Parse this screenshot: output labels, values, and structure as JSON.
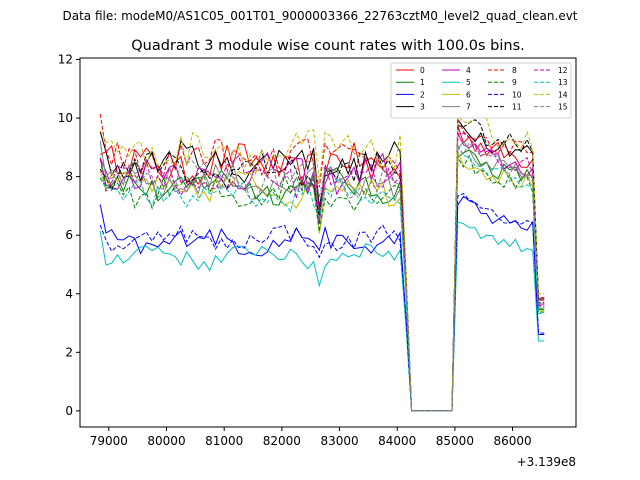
{
  "figure": {
    "suptitle": "Data file: modeM0/AS1C05_001T01_9000003366_22763cztM0_level2_quad_clean.evt",
    "offset_label": "+3.139e8"
  },
  "chart_data": {
    "type": "line",
    "title": "Quadrant 3 module wise count rates with 100.0s bins.",
    "xlabel": "",
    "ylabel": "",
    "x_offset": 313900000,
    "xlim": [
      78500,
      87100
    ],
    "ylim": [
      -0.55,
      12.05
    ],
    "xticks": [
      79000,
      80000,
      81000,
      82000,
      83000,
      84000,
      85000,
      86000
    ],
    "xtick_labels": [
      "79000",
      "80000",
      "81000",
      "82000",
      "83000",
      "84000",
      "85000",
      "86000"
    ],
    "yticks": [
      0,
      2,
      4,
      6,
      8,
      10,
      12
    ],
    "ytick_labels": [
      "0",
      "2",
      "4",
      "6",
      "8",
      "10",
      "12"
    ],
    "x": {
      "start": 78850,
      "step": 100,
      "count": 78
    },
    "grid": false,
    "legend": {
      "placement": "top-right",
      "columns": 4
    },
    "series": [
      {
        "name": "0",
        "color": "#ff0000",
        "dash": "solid",
        "base": 8.4,
        "amp": 0.55,
        "post": 9.2
      },
      {
        "name": "1",
        "color": "#008000",
        "dash": "solid",
        "base": 7.7,
        "amp": 0.45,
        "post": 8.6
      },
      {
        "name": "2",
        "color": "#0000ff",
        "dash": "solid",
        "base": 5.8,
        "amp": 0.35,
        "post": 6.9
      },
      {
        "name": "3",
        "color": "#000000",
        "dash": "solid",
        "base": 8.5,
        "amp": 0.5,
        "post": 9.5
      },
      {
        "name": "4",
        "color": "#bf00bf",
        "dash": "solid",
        "base": 8.1,
        "amp": 0.5,
        "post": 8.9
      },
      {
        "name": "5",
        "color": "#00bfbf",
        "dash": "solid",
        "base": 5.3,
        "amp": 0.3,
        "post": 6.2
      },
      {
        "name": "6",
        "color": "#bfbf00",
        "dash": "solid",
        "base": 7.6,
        "amp": 0.45,
        "post": 8.4
      },
      {
        "name": "7",
        "color": "#808080",
        "dash": "solid",
        "base": 7.8,
        "amp": 0.45,
        "post": 8.7
      },
      {
        "name": "8",
        "color": "#ff0000",
        "dash": "dashed",
        "base": 8.6,
        "amp": 0.55,
        "post": 9.4
      },
      {
        "name": "9",
        "color": "#008000",
        "dash": "dashed",
        "base": 7.5,
        "amp": 0.45,
        "post": 8.3
      },
      {
        "name": "10",
        "color": "#0000ff",
        "dash": "dashed",
        "base": 5.9,
        "amp": 0.3,
        "post": 7.0
      },
      {
        "name": "11",
        "color": "#000000",
        "dash": "dashed",
        "base": 8.2,
        "amp": 0.5,
        "post": 9.6
      },
      {
        "name": "12",
        "color": "#bf00bf",
        "dash": "dashed",
        "base": 8.0,
        "amp": 0.5,
        "post": 9.0
      },
      {
        "name": "13",
        "color": "#00bfbf",
        "dash": "dashed",
        "base": 7.4,
        "amp": 0.45,
        "post": 8.5
      },
      {
        "name": "14",
        "color": "#bfbf00",
        "dash": "dashed",
        "base": 8.9,
        "amp": 0.6,
        "post": 9.8
      },
      {
        "name": "15",
        "color": "#808080",
        "dash": "dashed",
        "base": 7.9,
        "amp": 0.45,
        "post": 8.8
      }
    ],
    "gap_start": 84250,
    "gap_end": 84950,
    "dip_x": 82650
  }
}
